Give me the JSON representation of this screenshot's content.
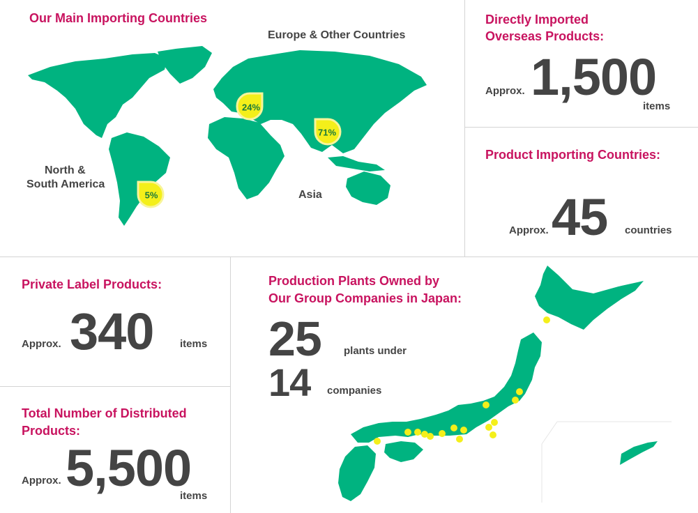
{
  "world_section": {
    "title": "Our Main Importing Countries",
    "regions": {
      "europe": "Europe & Other Countries",
      "america_line1": "North &",
      "america_line2": "South America",
      "asia": "Asia"
    },
    "shares": {
      "europe": "24%",
      "asia": "71%",
      "america": "5%"
    },
    "colors": {
      "land": "#00b380",
      "marker": "#f4ef1a"
    }
  },
  "imported_products": {
    "title_line1": "Directly Imported",
    "title_line2": "Overseas Products:",
    "prefix": "Approx.",
    "value": "1,500",
    "unit": "items"
  },
  "importing_countries": {
    "title": "Product Importing Countries:",
    "prefix": "Approx.",
    "value": "45",
    "unit": "countries"
  },
  "private_label": {
    "title": "Private Label Products:",
    "prefix": "Approx.",
    "value": "340",
    "unit": "items"
  },
  "distributed_products": {
    "title_line1": "Total Number of Distributed",
    "title_line2": "Products:",
    "prefix": "Approx.",
    "value": "5,500",
    "unit": "items"
  },
  "plants": {
    "title_line1": "Production Plants Owned by",
    "title_line2": "Our Group Companies in Japan:",
    "plants_value": "25",
    "plants_label": "plants under",
    "companies_value": "14",
    "companies_label": "companies"
  },
  "accent_color": "#c8135f"
}
